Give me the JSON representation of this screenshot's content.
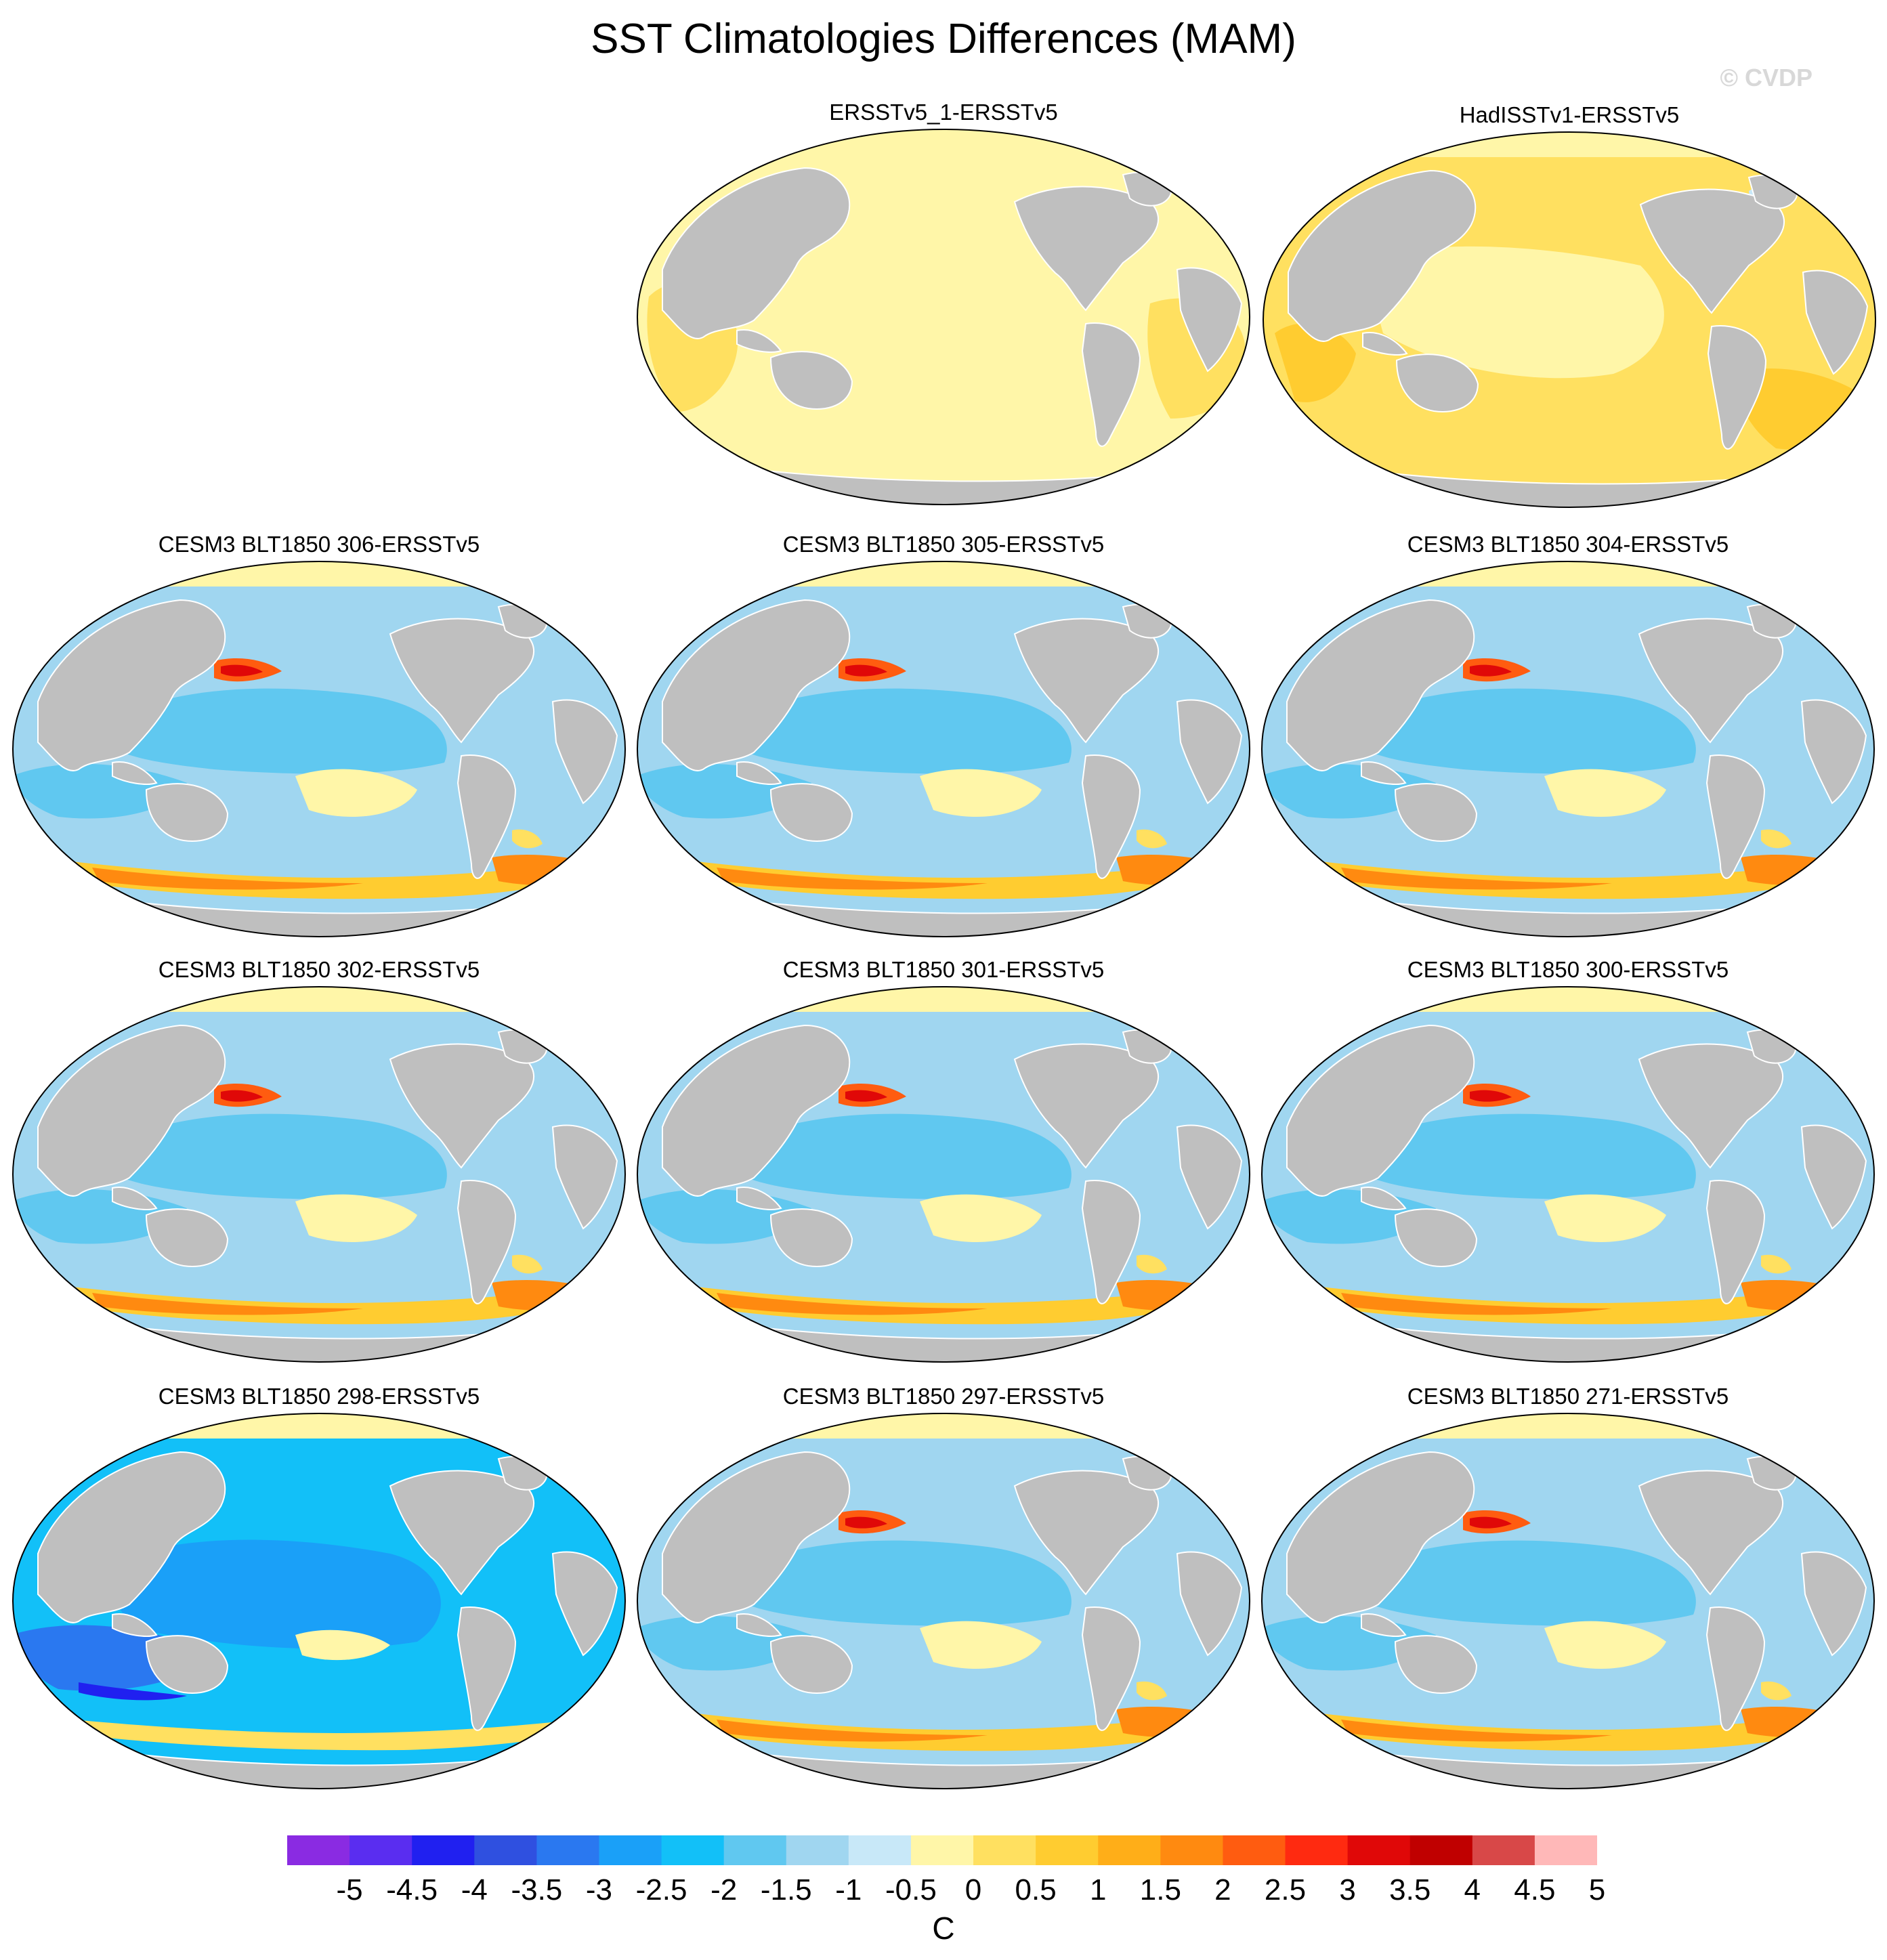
{
  "title": "SST Climatologies Differences (MAM)",
  "watermark": "© CVDP",
  "colorbar": {
    "colors": [
      "#8a2be2",
      "#5a2df0",
      "#2020f0",
      "#2f50e0",
      "#2a78f0",
      "#1aa0f8",
      "#12c0f8",
      "#60c8f0",
      "#a0d6f0",
      "#c8e8f8",
      "#fff6a8",
      "#ffe060",
      "#ffcc30",
      "#ffae18",
      "#ff8a10",
      "#ff5c10",
      "#ff2a10",
      "#e00808",
      "#c00000",
      "#d84848",
      "#ffb8b8"
    ],
    "labels": [
      "-5",
      "-4.5",
      "-4",
      "-3.5",
      "-3",
      "-2.5",
      "-2",
      "-1.5",
      "-1",
      "-0.5",
      "0",
      "0.5",
      "1",
      "1.5",
      "2",
      "2.5",
      "3",
      "3.5",
      "4",
      "4.5",
      "5"
    ],
    "units": "C"
  },
  "panels": [
    {
      "title": "ERSSTv5_1-ERSSTv5",
      "style": "light"
    },
    {
      "title": "HadISSTv1-ERSSTv5",
      "style": "warm"
    },
    {
      "title": "CESM3 BLT1850 306-ERSSTv5",
      "style": "model"
    },
    {
      "title": "CESM3 BLT1850 305-ERSSTv5",
      "style": "model"
    },
    {
      "title": "CESM3 BLT1850 304-ERSSTv5",
      "style": "model"
    },
    {
      "title": "CESM3 BLT1850 302-ERSSTv5",
      "style": "model"
    },
    {
      "title": "CESM3 BLT1850 301-ERSSTv5",
      "style": "model"
    },
    {
      "title": "CESM3 BLT1850 300-ERSSTv5",
      "style": "model"
    },
    {
      "title": "CESM3 BLT1850 298-ERSSTv5",
      "style": "cold"
    },
    {
      "title": "CESM3 BLT1850 297-ERSSTv5",
      "style": "model"
    },
    {
      "title": "CESM3 BLT1850 271-ERSSTv5",
      "style": "model"
    }
  ]
}
